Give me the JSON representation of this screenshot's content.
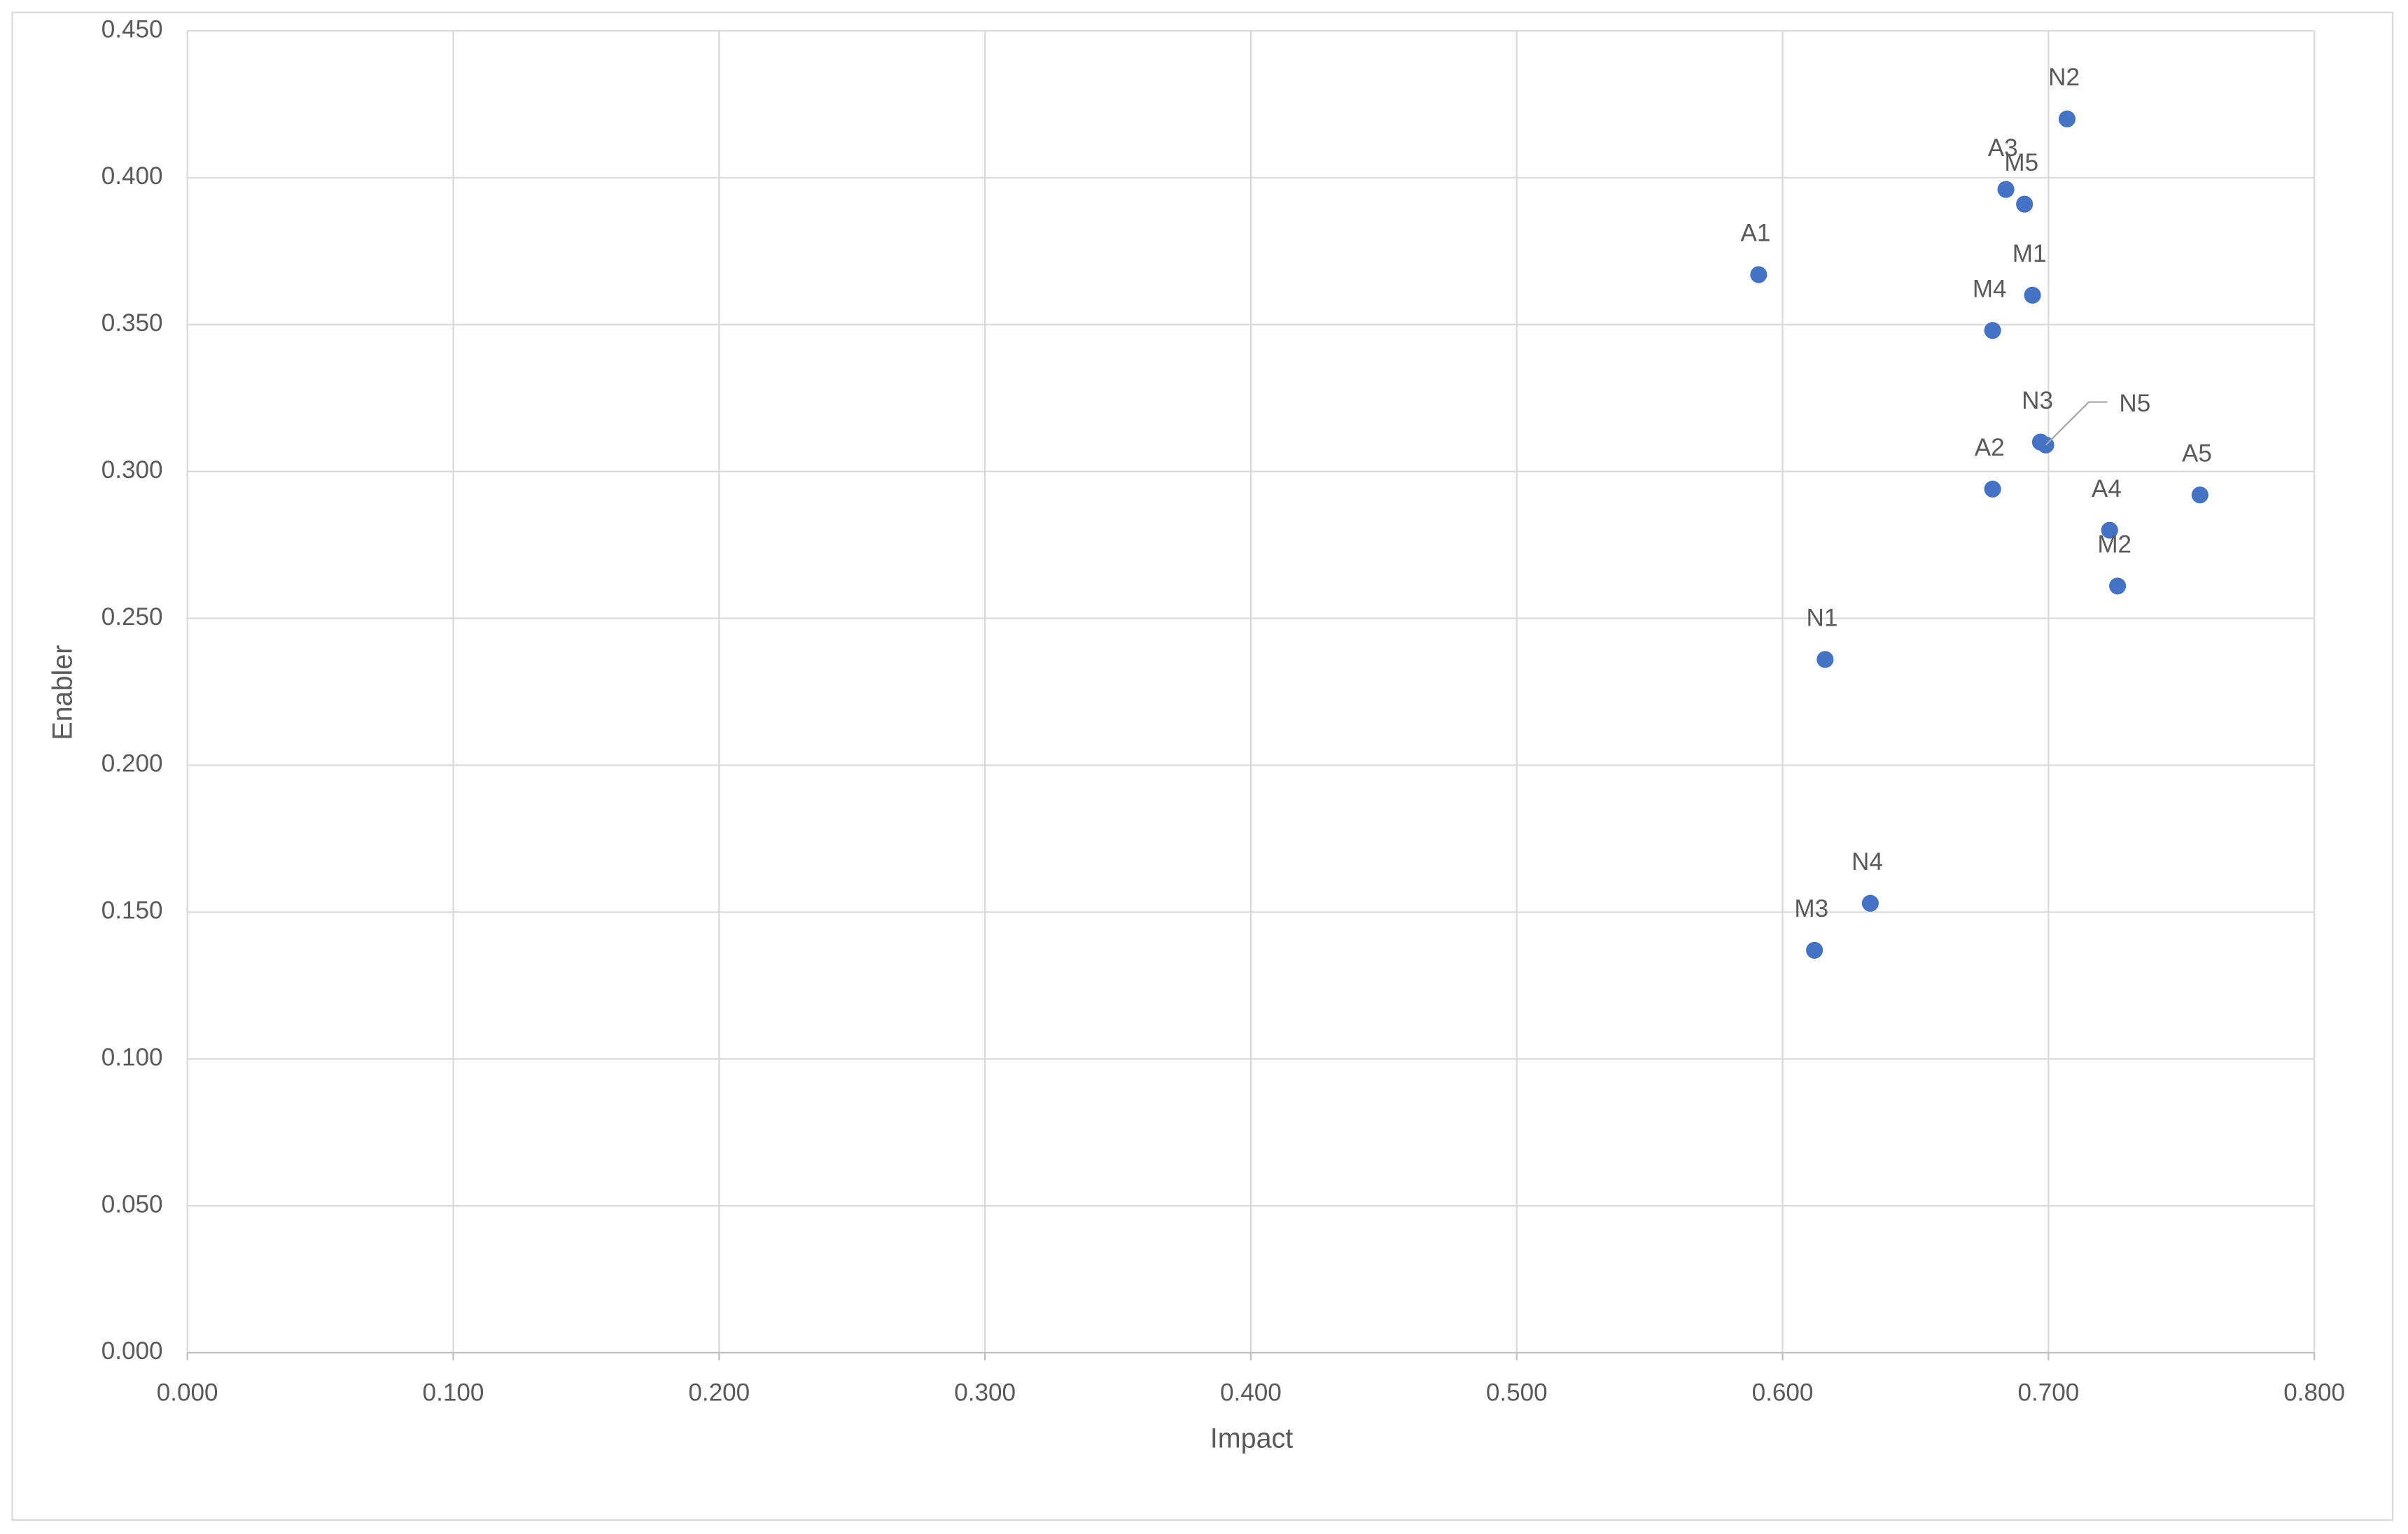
{
  "chart_data": {
    "type": "scatter",
    "x_label": "Impact",
    "y_label": "Enabler",
    "xlim": [
      0,
      0.8
    ],
    "xticks": [
      {
        "value": 0,
        "label": "0.000"
      },
      {
        "value": 0.1,
        "label": "0.100"
      },
      {
        "value": 0.2,
        "label": "0.200"
      },
      {
        "value": 0.3,
        "label": "0.300"
      },
      {
        "value": 0.4,
        "label": "0.400"
      },
      {
        "value": 0.5,
        "label": "0.500"
      },
      {
        "value": 0.6,
        "label": "0.600"
      },
      {
        "value": 0.7,
        "label": "0.700"
      },
      {
        "value": 0.8,
        "label": "0.800"
      }
    ],
    "ylim": [
      0,
      0.45
    ],
    "yticks": [
      {
        "value": 0,
        "label": "0.000"
      },
      {
        "value": 0.05,
        "label": "0.050"
      },
      {
        "value": 0.1,
        "label": "0.100"
      },
      {
        "value": 0.15,
        "label": "0.150"
      },
      {
        "value": 0.2,
        "label": "0.200"
      },
      {
        "value": 0.25,
        "label": "0.250"
      },
      {
        "value": 0.3,
        "label": "0.300"
      },
      {
        "value": 0.35,
        "label": "0.350"
      },
      {
        "value": 0.4,
        "label": "0.400"
      },
      {
        "value": 0.45,
        "label": "0.450"
      }
    ],
    "grid": true,
    "series": [
      {
        "color": "#4472c4",
        "labels": [
          "N2",
          "A3",
          "M5",
          "A1",
          "M1",
          "M4",
          "N3",
          "N5",
          "A2",
          "A5",
          "A4",
          "M2",
          "N1",
          "N4",
          "M3"
        ],
        "x": [
          0.707,
          0.684,
          0.691,
          0.591,
          0.694,
          0.679,
          0.697,
          0.699,
          0.679,
          0.757,
          0.723,
          0.726,
          0.616,
          0.633,
          0.612
        ],
        "values": [
          0.42,
          0.396,
          0.391,
          0.367,
          0.36,
          0.348,
          0.31,
          0.309,
          0.294,
          0.292,
          0.28,
          0.261,
          0.236,
          0.153,
          0.137
        ]
      }
    ]
  }
}
